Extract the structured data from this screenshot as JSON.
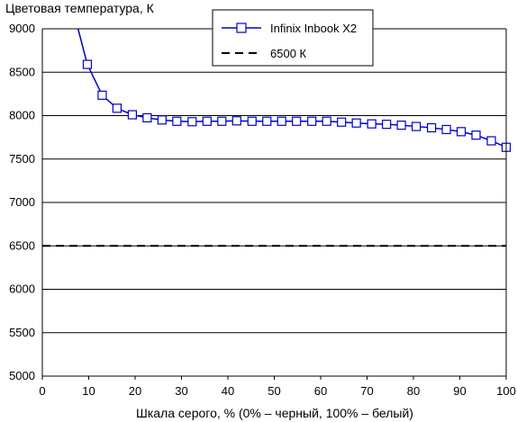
{
  "chart_data": {
    "type": "line",
    "ylabel": "Цветовая температура, К",
    "xlabel": "Шкала серого, % (0% – черный, 100% – белый)",
    "xlim": [
      0,
      100
    ],
    "ylim": [
      5000,
      9000
    ],
    "x_ticks": [
      "0",
      "10",
      "20",
      "30",
      "40",
      "50",
      "60",
      "70",
      "80",
      "90",
      "100"
    ],
    "y_ticks": [
      "5000",
      "5500",
      "6000",
      "6500",
      "7000",
      "7500",
      "8000",
      "8500",
      "9000"
    ],
    "grid": "horizontal",
    "legend_position": "top-center",
    "series": [
      {
        "name": "Infinix Inbook X2",
        "color": "#0000cc",
        "marker": "square",
        "x": [
          9.7,
          12.9,
          16.1,
          19.4,
          22.6,
          25.8,
          29.0,
          32.3,
          35.5,
          38.7,
          41.9,
          45.2,
          48.4,
          51.6,
          54.8,
          58.1,
          61.3,
          64.5,
          67.7,
          71.0,
          74.2,
          77.4,
          80.6,
          83.9,
          87.1,
          90.3,
          93.5,
          96.8,
          100
        ],
        "y": [
          8590,
          8235,
          8085,
          8010,
          7975,
          7950,
          7935,
          7930,
          7935,
          7935,
          7940,
          7935,
          7935,
          7935,
          7935,
          7935,
          7935,
          7925,
          7915,
          7905,
          7900,
          7890,
          7875,
          7860,
          7840,
          7815,
          7775,
          7710,
          7635
        ],
        "line_prefix": {
          "x": [
            7.7,
            9.7
          ],
          "y": [
            9000,
            8590
          ]
        }
      },
      {
        "name": "6500 К",
        "color": "#000000",
        "style": "dashed",
        "x": [
          0,
          100
        ],
        "y": [
          6500,
          6500
        ]
      }
    ]
  }
}
